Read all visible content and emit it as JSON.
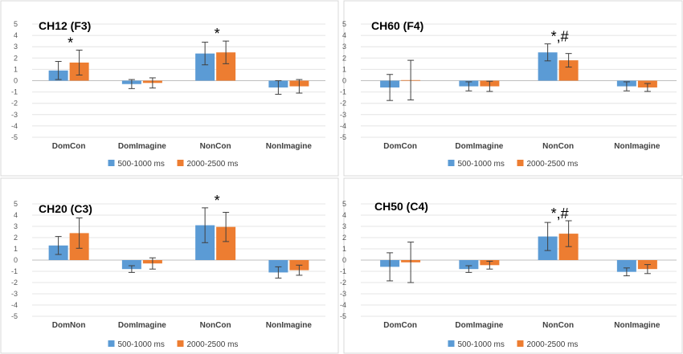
{
  "chart_data": [
    {
      "type": "bar",
      "title": "CH12 (F3)",
      "categories": [
        "DomCon",
        "DomImagine",
        "NonCon",
        "NonImagine"
      ],
      "ylim": [
        -5,
        5
      ],
      "yticks": [
        5,
        4,
        3,
        2,
        1,
        0,
        -1,
        -2,
        -3,
        -4,
        -5
      ],
      "series": [
        {
          "name": "500-1000 ms",
          "color": "#5B9BD5",
          "values": [
            0.9,
            -0.3,
            2.4,
            -0.6
          ],
          "errors": [
            0.8,
            0.4,
            1.0,
            0.6
          ]
        },
        {
          "name": "2000-2500 ms",
          "color": "#ED7D31",
          "values": [
            1.6,
            -0.2,
            2.5,
            -0.5
          ],
          "errors": [
            1.1,
            0.45,
            1.0,
            0.6
          ]
        }
      ],
      "annotations": [
        {
          "category": "DomCon",
          "text": "*"
        },
        {
          "category": "NonCon",
          "text": "*"
        }
      ]
    },
    {
      "type": "bar",
      "title": "CH60 (F4)",
      "categories": [
        "DomCon",
        "DomImagine",
        "NonCon",
        "NonImagine"
      ],
      "ylim": [
        -5,
        5
      ],
      "yticks": [
        5,
        4,
        3,
        2,
        1,
        0,
        -1,
        -2,
        -3,
        -4,
        -5
      ],
      "series": [
        {
          "name": "500-1000 ms",
          "color": "#5B9BD5",
          "values": [
            -0.6,
            -0.5,
            2.5,
            -0.5
          ],
          "errors": [
            1.15,
            0.4,
            0.75,
            0.4
          ]
        },
        {
          "name": "2000-2500 ms",
          "color": "#ED7D31",
          "values": [
            0.05,
            -0.5,
            1.8,
            -0.6
          ],
          "errors": [
            1.75,
            0.45,
            0.6,
            0.35
          ]
        }
      ],
      "annotations": [
        {
          "category": "NonCon",
          "text": "*,#"
        }
      ]
    },
    {
      "type": "bar",
      "title": "CH20 (C3)",
      "categories": [
        "DomNon",
        "DomImagine",
        "NonCon",
        "NonImagine"
      ],
      "ylim": [
        -5,
        5
      ],
      "yticks": [
        5,
        4,
        3,
        2,
        1,
        0,
        -1,
        -2,
        -3,
        -4,
        -5
      ],
      "series": [
        {
          "name": "500-1000 ms",
          "color": "#5B9BD5",
          "values": [
            1.3,
            -0.8,
            3.1,
            -1.1
          ],
          "errors": [
            0.8,
            0.3,
            1.55,
            0.5
          ]
        },
        {
          "name": "2000-2500 ms",
          "color": "#ED7D31",
          "values": [
            2.4,
            -0.3,
            2.95,
            -0.9
          ],
          "errors": [
            1.35,
            0.5,
            1.3,
            0.45
          ]
        }
      ],
      "annotations": [
        {
          "category": "NonCon",
          "text": "*"
        }
      ]
    },
    {
      "type": "bar",
      "title": "CH50 (C4)",
      "categories": [
        "DomCon",
        "DomImagine",
        "NonCon",
        "NonImagine"
      ],
      "ylim": [
        -5,
        5
      ],
      "yticks": [
        5,
        4,
        3,
        2,
        1,
        0,
        -1,
        -2,
        -3,
        -4,
        -5
      ],
      "series": [
        {
          "name": "500-1000 ms",
          "color": "#5B9BD5",
          "values": [
            -0.6,
            -0.8,
            2.1,
            -1.05
          ],
          "errors": [
            1.25,
            0.3,
            1.25,
            0.35
          ]
        },
        {
          "name": "2000-2500 ms",
          "color": "#ED7D31",
          "values": [
            -0.2,
            -0.45,
            2.35,
            -0.8
          ],
          "errors": [
            1.8,
            0.35,
            1.15,
            0.4
          ]
        }
      ],
      "annotations": [
        {
          "category": "NonCon",
          "text": "*,#"
        }
      ]
    }
  ]
}
